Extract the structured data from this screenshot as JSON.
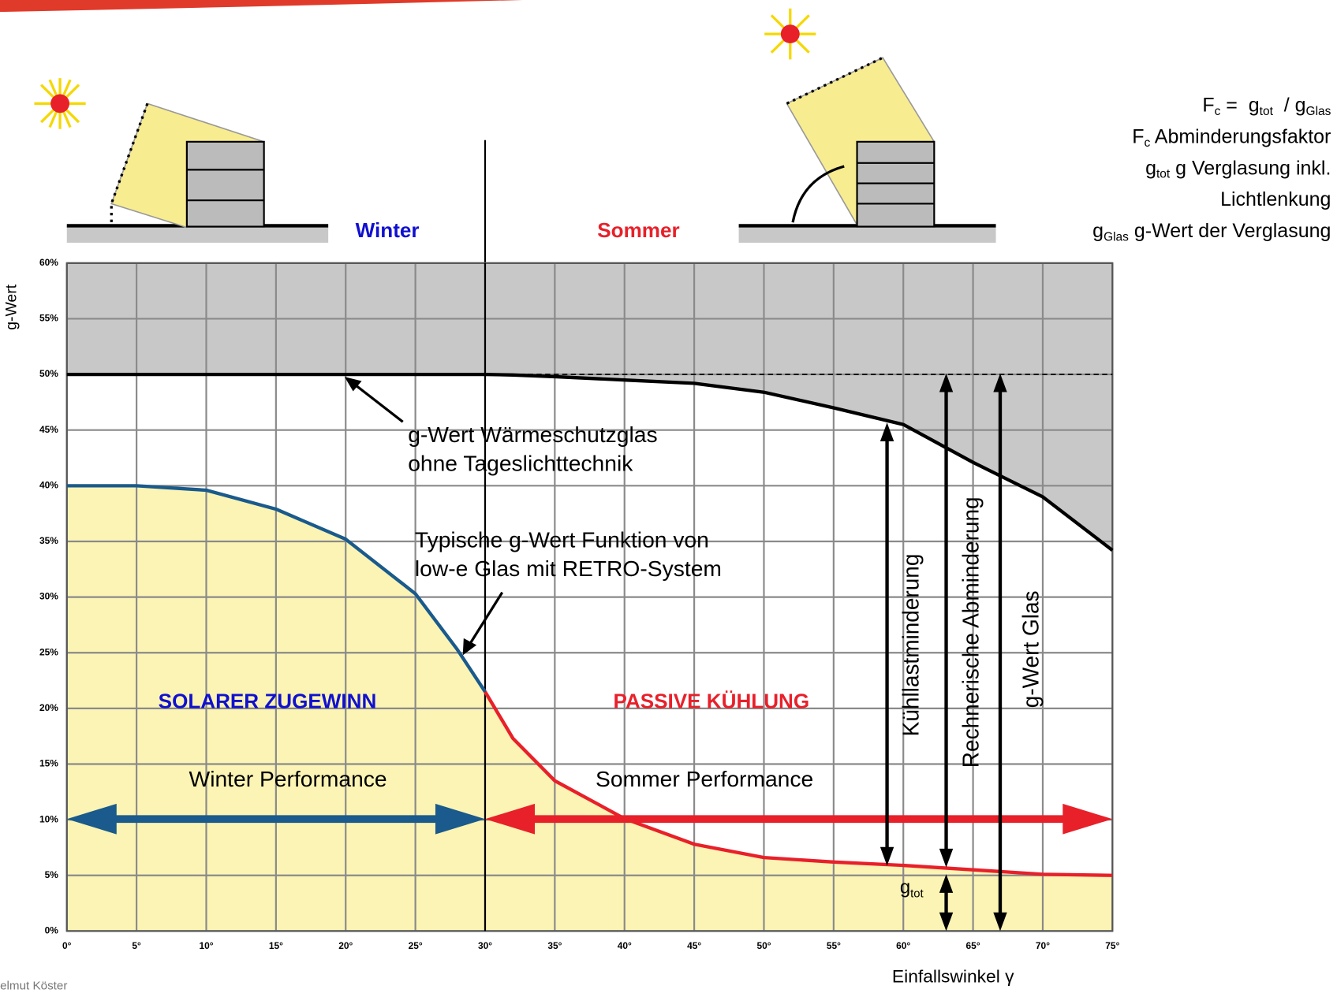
{
  "chart_data": {
    "type": "line",
    "x": [
      0,
      5,
      10,
      15,
      20,
      25,
      28,
      30,
      32,
      35,
      40,
      45,
      50,
      55,
      60,
      65,
      70,
      75
    ],
    "xlim": [
      0,
      75
    ],
    "ylim": [
      0,
      60
    ],
    "xticks": [
      {
        "value": 0,
        "label": "0°"
      },
      {
        "value": 5,
        "label": "5°"
      },
      {
        "value": 10,
        "label": "10°"
      },
      {
        "value": 15,
        "label": "15°"
      },
      {
        "value": 20,
        "label": "20°"
      },
      {
        "value": 25,
        "label": "25°"
      },
      {
        "value": 30,
        "label": "30°"
      },
      {
        "value": 35,
        "label": "35°"
      },
      {
        "value": 40,
        "label": "40°"
      },
      {
        "value": 45,
        "label": "45°"
      },
      {
        "value": 50,
        "label": "50°"
      },
      {
        "value": 55,
        "label": "55°"
      },
      {
        "value": 60,
        "label": "60°"
      },
      {
        "value": 65,
        "label": "65°"
      },
      {
        "value": 70,
        "label": "70°"
      },
      {
        "value": 75,
        "label": "75°"
      }
    ],
    "yticks": [
      {
        "value": 0,
        "label": "0%"
      },
      {
        "value": 5,
        "label": "5%"
      },
      {
        "value": 10,
        "label": "10%"
      },
      {
        "value": 15,
        "label": "15%"
      },
      {
        "value": 20,
        "label": "20%"
      },
      {
        "value": 25,
        "label": "25%"
      },
      {
        "value": 30,
        "label": "30%"
      },
      {
        "value": 35,
        "label": "35%"
      },
      {
        "value": 40,
        "label": "40%"
      },
      {
        "value": 45,
        "label": "45%"
      },
      {
        "value": 50,
        "label": "50%"
      },
      {
        "value": 55,
        "label": "55%"
      },
      {
        "value": 60,
        "label": "60%"
      }
    ],
    "x_label": "Einfallswinkel γ",
    "y_label": "g-Wert",
    "grid": true,
    "series": [
      {
        "color": "#000000",
        "style": "solid",
        "fill": "above",
        "fill_color": "#c8c8c8",
        "values": [
          50,
          50,
          50,
          50,
          50,
          50,
          50,
          50,
          49.95,
          49.8,
          49.5,
          49.2,
          48.4,
          47.0,
          45.5,
          42.1,
          39.0,
          34.2
        ]
      },
      {
        "color": "#000000",
        "style": "dashed",
        "values": [
          null,
          null,
          null,
          null,
          null,
          null,
          null,
          50,
          50,
          50,
          50,
          50,
          50,
          50,
          50,
          50,
          50,
          50
        ]
      },
      {
        "color": "#1a5a8c",
        "style": "solid",
        "fill": "below",
        "fill_color": "#fbf4b4",
        "values": [
          40,
          40,
          39.6,
          37.9,
          35.2,
          30.3,
          25.3,
          21.5,
          null,
          null,
          null,
          null,
          null,
          null,
          null,
          null,
          null,
          null
        ]
      },
      {
        "color": "#e8202a",
        "style": "solid",
        "fill": "below",
        "fill_color": "#fbf4b4",
        "values": [
          null,
          null,
          null,
          null,
          null,
          null,
          null,
          21.5,
          17.3,
          13.5,
          10.1,
          7.8,
          6.6,
          6.2,
          5.9,
          5.5,
          5.1,
          5.0
        ]
      }
    ],
    "annotations": [
      "Winter",
      "Sommer",
      "g-Wert Wärmeschutzglas",
      "ohne Tageslichttechnik",
      "Typische g-Wert Funktion von",
      "low-e Glas mit RETRO-System",
      "SOLARER ZUGEWINN",
      "PASSIVE KÜHLUNG",
      "Winter Performance",
      "Sommer Performance",
      "Kühllastminderung",
      "Rechnerische Abminderung",
      "g-Wert Glas"
    ],
    "gtot_label": [
      {
        "text": "g"
      },
      {
        "sub": "tot"
      }
    ],
    "legend_lines": [
      [
        {
          "text": "F"
        },
        {
          "sub": "c"
        },
        {
          "text": " =  g"
        },
        {
          "sub": "tot"
        },
        {
          "text": "  / g"
        },
        {
          "sub": "Glas"
        }
      ],
      [
        {
          "text": "F"
        },
        {
          "sub": "c"
        },
        {
          "text": " Abminderungsfaktor"
        }
      ],
      [
        {
          "text": "g"
        },
        {
          "sub": "tot"
        },
        {
          "text": " g Verglasung inkl."
        }
      ],
      [
        {
          "text": "Lichtlenkung"
        }
      ],
      [
        {
          "text": "g"
        },
        {
          "sub": "Glas"
        },
        {
          "text": " g-Wert der Verglasung"
        }
      ]
    ],
    "footer": "Helmut Köster"
  }
}
